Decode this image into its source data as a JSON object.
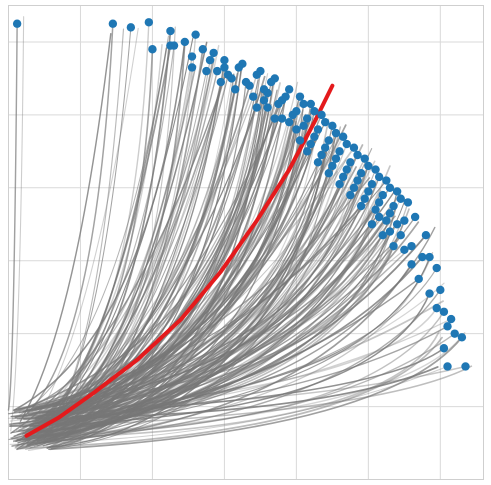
{
  "chart_data": {
    "type": "line",
    "title": "",
    "xlabel": "",
    "ylabel": "",
    "xlim": [
      0,
      6.6
    ],
    "ylim": [
      0,
      6.5
    ],
    "x_ticks": [
      0,
      1,
      2,
      3,
      4,
      5,
      6
    ],
    "y_ticks": [
      0,
      1,
      2,
      3,
      4,
      5,
      6
    ],
    "tick_labels_visible": false,
    "grid": true,
    "legend": "none",
    "colors": {
      "trajectory": "#777777",
      "endpoint": "#1f77b4",
      "mean": "#e41a1c",
      "grid": "#d9d9d9",
      "frame": "#cfcfcf"
    },
    "origin_cloud": {
      "x_range": [
        0.0,
        0.6
      ],
      "y_range": [
        0.4,
        1.0
      ]
    },
    "series": [
      {
        "kind": "trajectories",
        "count": 220,
        "opacity_range": [
          0.3,
          0.85
        ],
        "note_visible": false
      },
      {
        "kind": "endpoints",
        "points": [
          [
            0.12,
            6.25
          ],
          [
            1.45,
            6.25
          ],
          [
            1.7,
            6.2
          ],
          [
            1.95,
            6.27
          ],
          [
            2.25,
            6.15
          ],
          [
            2.6,
            6.1
          ],
          [
            2.45,
            6.0
          ],
          [
            2.3,
            5.95
          ],
          [
            2.7,
            5.9
          ],
          [
            2.85,
            5.85
          ],
          [
            3.0,
            5.75
          ],
          [
            3.25,
            5.7
          ],
          [
            3.5,
            5.6
          ],
          [
            3.7,
            5.5
          ],
          [
            3.9,
            5.35
          ],
          [
            4.05,
            5.25
          ],
          [
            4.2,
            5.15
          ],
          [
            4.35,
            5.0
          ],
          [
            4.5,
            4.85
          ],
          [
            4.65,
            4.7
          ],
          [
            4.8,
            4.55
          ],
          [
            4.95,
            4.4
          ],
          [
            5.1,
            4.25
          ],
          [
            5.25,
            4.1
          ],
          [
            5.4,
            3.95
          ],
          [
            5.55,
            3.8
          ],
          [
            5.65,
            3.6
          ],
          [
            5.8,
            3.35
          ],
          [
            5.85,
            3.05
          ],
          [
            5.95,
            2.9
          ],
          [
            6.0,
            2.6
          ],
          [
            6.05,
            2.3
          ],
          [
            6.1,
            2.1
          ],
          [
            6.05,
            1.8
          ],
          [
            6.3,
            1.95
          ],
          [
            6.1,
            1.55
          ],
          [
            6.35,
            1.55
          ],
          [
            2.0,
            5.9
          ],
          [
            2.25,
            5.95
          ],
          [
            2.55,
            5.8
          ],
          [
            2.9,
            5.6
          ],
          [
            3.1,
            5.5
          ],
          [
            3.35,
            5.4
          ],
          [
            3.6,
            5.3
          ],
          [
            3.8,
            5.2
          ],
          [
            4.0,
            5.05
          ],
          [
            4.15,
            4.95
          ],
          [
            4.3,
            4.8
          ],
          [
            4.45,
            4.65
          ],
          [
            4.6,
            4.5
          ],
          [
            4.75,
            4.35
          ],
          [
            4.9,
            4.2
          ],
          [
            5.05,
            4.05
          ],
          [
            5.2,
            3.9
          ],
          [
            5.35,
            3.75
          ],
          [
            5.5,
            3.55
          ],
          [
            3.2,
            5.65
          ],
          [
            3.45,
            5.55
          ],
          [
            3.65,
            5.45
          ],
          [
            3.85,
            5.25
          ],
          [
            4.1,
            5.15
          ],
          [
            4.25,
            5.05
          ],
          [
            4.4,
            4.9
          ],
          [
            4.55,
            4.75
          ],
          [
            4.7,
            4.6
          ],
          [
            4.85,
            4.45
          ],
          [
            5.0,
            4.3
          ],
          [
            5.15,
            4.15
          ],
          [
            5.3,
            4.0
          ],
          [
            5.45,
            3.85
          ],
          [
            3.05,
            5.55
          ],
          [
            3.3,
            5.45
          ],
          [
            3.55,
            5.35
          ],
          [
            3.75,
            5.15
          ],
          [
            3.95,
            5.0
          ],
          [
            4.1,
            4.85
          ],
          [
            4.25,
            4.7
          ],
          [
            4.4,
            4.55
          ],
          [
            4.55,
            4.4
          ],
          [
            4.7,
            4.25
          ],
          [
            4.85,
            4.1
          ],
          [
            5.0,
            3.95
          ],
          [
            5.15,
            3.8
          ],
          [
            5.3,
            3.65
          ],
          [
            5.4,
            3.5
          ],
          [
            2.8,
            5.75
          ],
          [
            3.0,
            5.65
          ],
          [
            3.4,
            5.25
          ],
          [
            3.6,
            5.1
          ],
          [
            3.8,
            4.95
          ],
          [
            4.0,
            4.8
          ],
          [
            4.2,
            4.6
          ],
          [
            4.35,
            4.45
          ],
          [
            4.5,
            4.3
          ],
          [
            4.65,
            4.15
          ],
          [
            4.8,
            4.0
          ],
          [
            4.95,
            3.85
          ],
          [
            5.1,
            3.7
          ],
          [
            5.25,
            3.55
          ],
          [
            5.45,
            3.35
          ],
          [
            5.6,
            3.2
          ],
          [
            5.75,
            3.05
          ],
          [
            5.3,
            3.4
          ],
          [
            5.5,
            3.15
          ],
          [
            5.15,
            3.6
          ],
          [
            4.9,
            3.75
          ],
          [
            4.6,
            4.05
          ],
          [
            4.3,
            4.35
          ],
          [
            4.05,
            4.65
          ],
          [
            3.7,
            4.95
          ],
          [
            3.45,
            5.1
          ],
          [
            3.15,
            5.35
          ],
          [
            2.95,
            5.45
          ],
          [
            2.75,
            5.6
          ],
          [
            2.55,
            5.65
          ],
          [
            3.55,
            5.2
          ],
          [
            3.9,
            4.9
          ],
          [
            4.15,
            4.5
          ],
          [
            4.45,
            4.2
          ],
          [
            4.75,
            3.9
          ],
          [
            5.05,
            3.5
          ],
          [
            5.2,
            3.35
          ],
          [
            5.35,
            3.2
          ],
          [
            5.6,
            2.95
          ],
          [
            5.7,
            2.75
          ],
          [
            5.85,
            2.55
          ],
          [
            5.95,
            2.35
          ],
          [
            6.15,
            2.2
          ],
          [
            6.2,
            2.0
          ]
        ]
      },
      {
        "kind": "mean",
        "points": [
          [
            0.25,
            0.6
          ],
          [
            0.7,
            0.85
          ],
          [
            1.2,
            1.2
          ],
          [
            1.8,
            1.65
          ],
          [
            2.4,
            2.2
          ],
          [
            2.95,
            2.85
          ],
          [
            3.45,
            3.55
          ],
          [
            3.9,
            4.25
          ],
          [
            4.25,
            4.9
          ],
          [
            4.5,
            5.4
          ]
        ]
      }
    ]
  }
}
